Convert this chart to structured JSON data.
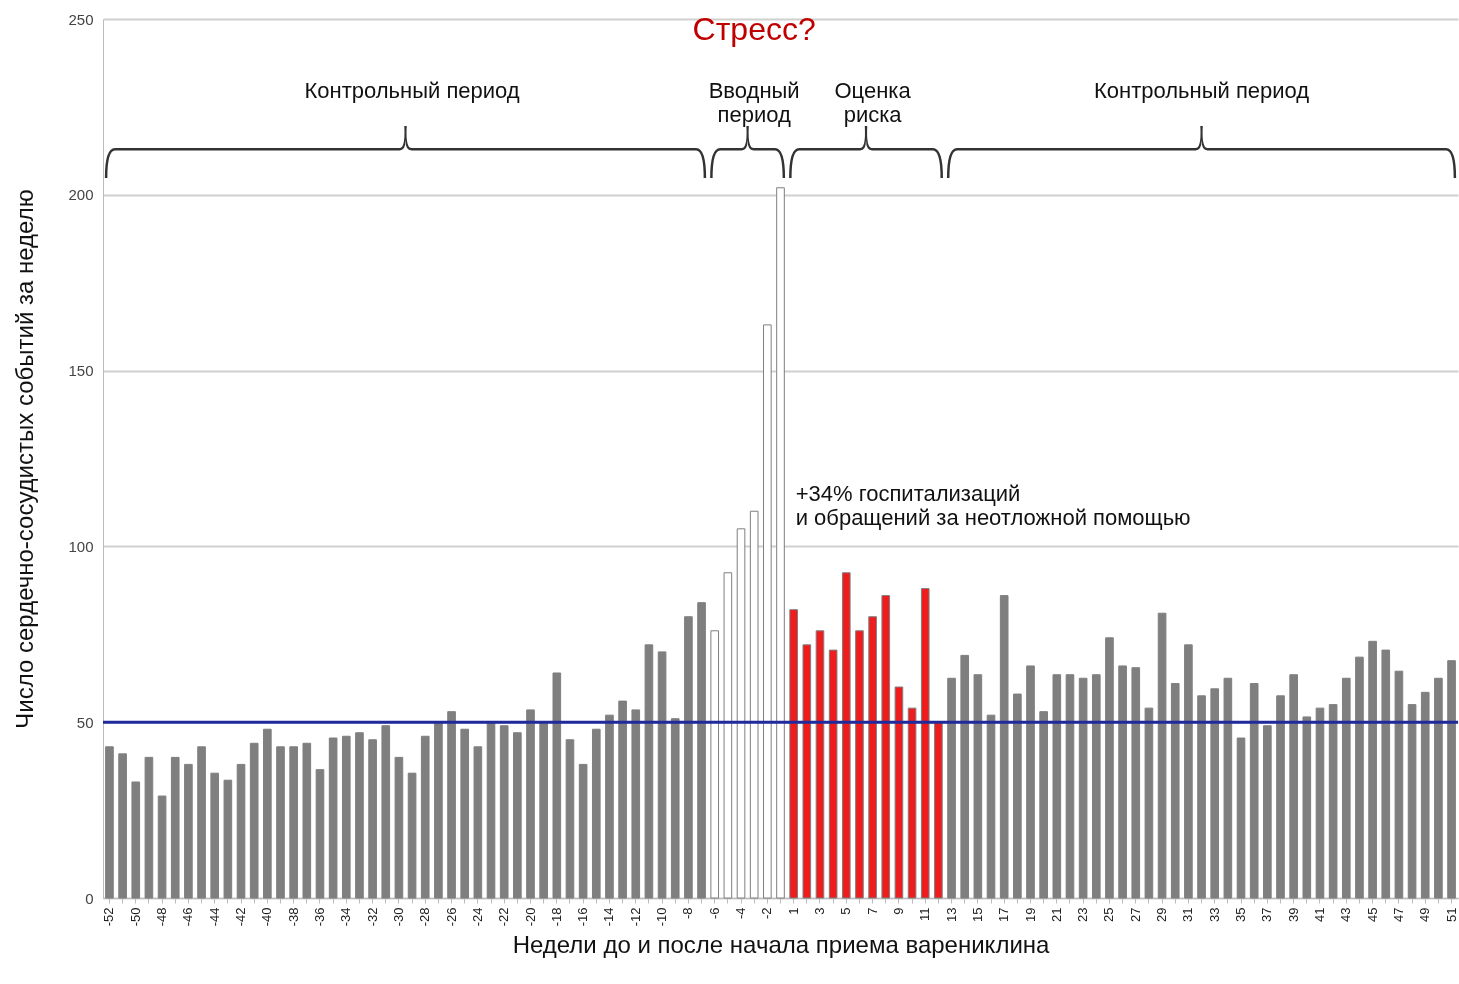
{
  "chart_data": {
    "type": "bar",
    "xlabel": "Недели до и после начала приема варениклина",
    "ylabel": "Число сердечно-сосудистых событий за неделю",
    "categories": [
      "-52",
      null,
      "-50",
      null,
      "-48",
      null,
      "-46",
      null,
      "-44",
      null,
      "-42",
      null,
      "-40",
      null,
      "-38",
      null,
      "-36",
      null,
      "-34",
      null,
      "-32",
      null,
      "-30",
      null,
      "-28",
      null,
      "-26",
      null,
      "-24",
      null,
      "-22",
      null,
      "-20",
      null,
      "-18",
      null,
      "-16",
      null,
      "-14",
      null,
      "-12",
      null,
      "-10",
      null,
      "-8",
      null,
      "-6",
      null,
      "-4",
      null,
      "-2",
      null,
      "1",
      null,
      "3",
      null,
      "5",
      null,
      "7",
      null,
      "9",
      null,
      "11",
      null,
      "13",
      null,
      "15",
      null,
      "17",
      null,
      "19",
      null,
      "21",
      null,
      "23",
      null,
      "25",
      null,
      "27",
      null,
      "29",
      null,
      "31",
      null,
      "33",
      null,
      "35",
      null,
      "37",
      null,
      "39",
      null,
      "41",
      null,
      "43",
      null,
      "45",
      null,
      "47",
      null,
      "49",
      null,
      "51"
    ],
    "values": [
      43,
      41,
      33,
      40,
      29,
      40,
      38,
      43,
      35.5,
      33.5,
      38,
      44,
      48,
      43,
      43,
      44,
      36.5,
      45.5,
      46,
      47,
      45,
      49,
      40,
      35.5,
      46,
      50,
      53,
      48,
      43,
      50,
      49,
      47,
      53.5,
      50,
      64,
      45,
      38,
      48,
      52,
      56,
      53.5,
      72,
      70,
      51,
      80,
      84,
      76,
      92.5,
      105,
      110,
      163,
      202,
      82,
      72,
      76,
      70.5,
      92.5,
      76,
      80,
      86,
      60,
      54,
      88,
      50,
      62.5,
      69,
      63.5,
      52,
      86,
      58,
      66,
      53,
      63.5,
      63.5,
      62.5,
      63.5,
      74,
      66,
      65.5,
      54,
      81,
      61,
      72,
      57.5,
      59.5,
      62.5,
      45.5,
      61,
      49,
      57.5,
      63.5,
      51.5,
      54,
      55,
      62.5,
      68.5,
      73,
      70.5,
      64.5,
      55,
      58.5,
      62.5,
      67.5
    ],
    "colors": [
      "#7f7f7f",
      "#7f7f7f",
      "#7f7f7f",
      "#7f7f7f",
      "#7f7f7f",
      "#7f7f7f",
      "#7f7f7f",
      "#7f7f7f",
      "#7f7f7f",
      "#7f7f7f",
      "#7f7f7f",
      "#7f7f7f",
      "#7f7f7f",
      "#7f7f7f",
      "#7f7f7f",
      "#7f7f7f",
      "#7f7f7f",
      "#7f7f7f",
      "#7f7f7f",
      "#7f7f7f",
      "#7f7f7f",
      "#7f7f7f",
      "#7f7f7f",
      "#7f7f7f",
      "#7f7f7f",
      "#7f7f7f",
      "#7f7f7f",
      "#7f7f7f",
      "#7f7f7f",
      "#7f7f7f",
      "#7f7f7f",
      "#7f7f7f",
      "#7f7f7f",
      "#7f7f7f",
      "#7f7f7f",
      "#7f7f7f",
      "#7f7f7f",
      "#7f7f7f",
      "#7f7f7f",
      "#7f7f7f",
      "#7f7f7f",
      "#7f7f7f",
      "#7f7f7f",
      "#7f7f7f",
      "#7f7f7f",
      "#7f7f7f",
      "#ffffff",
      "#ffffff",
      "#ffffff",
      "#ffffff",
      "#ffffff",
      "#ffffff",
      "#ee1c1c",
      "#ee1c1c",
      "#ee1c1c",
      "#ee1c1c",
      "#ee1c1c",
      "#ee1c1c",
      "#ee1c1c",
      "#ee1c1c",
      "#ee1c1c",
      "#ee1c1c",
      "#ee1c1c",
      "#ee1c1c",
      "#7f7f7f",
      "#7f7f7f",
      "#7f7f7f",
      "#7f7f7f",
      "#7f7f7f",
      "#7f7f7f",
      "#7f7f7f",
      "#7f7f7f",
      "#7f7f7f",
      "#7f7f7f",
      "#7f7f7f",
      "#7f7f7f",
      "#7f7f7f",
      "#7f7f7f",
      "#7f7f7f",
      "#7f7f7f",
      "#7f7f7f",
      "#7f7f7f",
      "#7f7f7f",
      "#7f7f7f",
      "#7f7f7f",
      "#7f7f7f",
      "#7f7f7f",
      "#7f7f7f",
      "#7f7f7f",
      "#7f7f7f",
      "#7f7f7f",
      "#7f7f7f",
      "#7f7f7f",
      "#7f7f7f",
      "#7f7f7f",
      "#7f7f7f",
      "#7f7f7f",
      "#7f7f7f",
      "#7f7f7f",
      "#7f7f7f",
      "#7f7f7f",
      "#7f7f7f",
      "#7f7f7f"
    ],
    "ylim": [
      0,
      250
    ],
    "yticks": [
      0,
      50,
      100,
      150,
      200,
      250
    ],
    "grid": "y",
    "ref_lines": [
      {
        "axis": "y",
        "value": 50,
        "color": "#1f2a9c"
      }
    ],
    "annotations": [
      "Стресс?",
      "Контрольный период",
      "Вводный\nпериод",
      "Оценка\nриска",
      "Контрольный период",
      "+34% госпитализаций\nи обращений за неотложной помощью"
    ]
  }
}
